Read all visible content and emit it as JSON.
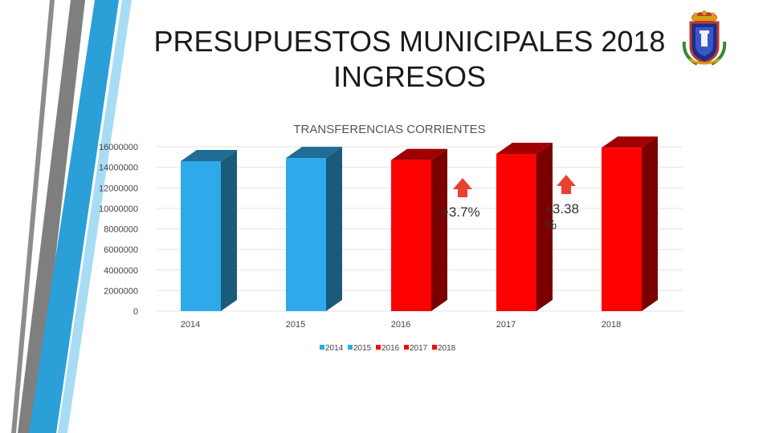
{
  "slide": {
    "title_line1": "PRESUPUESTOS MUNICIPALES 2018",
    "title_line2": "INGRESOS"
  },
  "colors": {
    "blue": "#2eaaeb",
    "blue_side": "#1a5a7a",
    "blue_top": "#1f6d94",
    "red": "#ff0000",
    "red_side": "#7a0000",
    "red_top": "#a00000",
    "arrow": "#e8412f",
    "stripe_light": "#2a9fd8",
    "stripe_gray": "#7f7f7f"
  },
  "annotations": {
    "pct_2017": "+3.7%",
    "pct_2018_line1": "+3.38",
    "pct_2018_line2": "%"
  },
  "chart_data": {
    "type": "bar",
    "title": "TRANSFERENCIAS CORRIENTES",
    "categories": [
      "2014",
      "2015",
      "2016",
      "2017",
      "2018"
    ],
    "values": [
      14600000,
      14900000,
      14700000,
      15300000,
      15900000
    ],
    "ylim": [
      0,
      16000000
    ],
    "yticks": [
      "0",
      "2000000",
      "4000000",
      "6000000",
      "8000000",
      "10000000",
      "12000000",
      "14000000",
      "16000000"
    ],
    "xlabel": "",
    "ylabel": "",
    "grid": true,
    "legend_position": "bottom",
    "legend": [
      "2014",
      "2015",
      "2016",
      "2017",
      "2018"
    ],
    "style": "3d"
  }
}
